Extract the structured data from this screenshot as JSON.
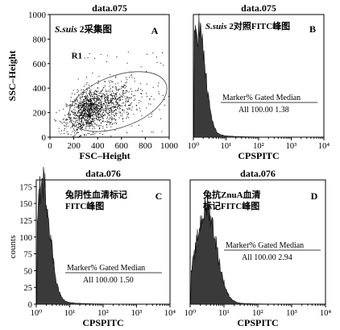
{
  "chart_data": [
    {
      "panel": "A",
      "type": "scatter",
      "title": "data.075",
      "caption_italic": "S.suis",
      "caption_rest": " 2采集图",
      "xlabel": "FSC–Height",
      "ylabel": "SSC–Height",
      "xlim": [
        0,
        1000
      ],
      "ylim": [
        0,
        1000
      ],
      "xticks": [
        "0",
        "200",
        "400",
        "600",
        "800",
        "1000"
      ],
      "yticks": [
        "0",
        "200",
        "400",
        "600",
        "800",
        "1000"
      ],
      "gate": {
        "label": "R1",
        "cx": 570,
        "cy": 290,
        "rx": 430,
        "ry": 210,
        "angle_deg": 20
      },
      "cloud": {
        "n": 1400,
        "center": [
          350,
          230
        ],
        "spread": [
          140,
          95
        ]
      }
    },
    {
      "panel": "B",
      "type": "histogram",
      "title": "data.075",
      "caption_italic": "S.suis",
      "caption_rest": " 2对照FITC峰图",
      "xlabel": "CPSPITC",
      "ylabel": "",
      "xscale": "log",
      "xlim": [
        1,
        10000
      ],
      "xticks": [
        "10⁰",
        "10¹",
        "10²",
        "10³",
        "10⁴"
      ],
      "yticks": [],
      "peak_x": 1.38,
      "peak_y": 160,
      "sigma_decades": 0.22,
      "marker": {
        "header": "Marker% Gated Median",
        "row": "All 100.00 1.38"
      }
    },
    {
      "panel": "C",
      "type": "histogram",
      "title": "data.076",
      "caption_line1": "兔阴性血清标记",
      "caption_line2": "FITC峰图",
      "xlabel": "CPSPITC",
      "ylabel": "counts",
      "xscale": "log",
      "xlim": [
        1,
        10000
      ],
      "xticks": [
        "10⁰",
        "10¹",
        "10²",
        "10³",
        "10⁴"
      ],
      "yticks": [
        "0",
        "25",
        "50",
        "75",
        "100",
        "125",
        "150",
        "175"
      ],
      "ylim": [
        0,
        185
      ],
      "peak_x": 1.5,
      "peak_y": 175,
      "sigma_decades": 0.23,
      "marker": {
        "header": "Marker% Gated Median",
        "row": "All 100.00 1.50"
      }
    },
    {
      "panel": "D",
      "type": "histogram",
      "title": "data.076",
      "caption_line1": "兔抗ZnuA血清",
      "caption_line2": "标记FITC峰图",
      "xlabel": "CPSPITC",
      "ylabel": "",
      "xscale": "log",
      "xlim": [
        1,
        10000
      ],
      "xticks": [
        "10⁰",
        "10¹",
        "10²",
        "10³",
        "10⁴"
      ],
      "yticks": [],
      "peak_x": 2.94,
      "peak_y": 140,
      "sigma_decades": 0.3,
      "marker": {
        "header": "Marker% Gated Median",
        "row": "All 100.00 2.94"
      }
    }
  ]
}
